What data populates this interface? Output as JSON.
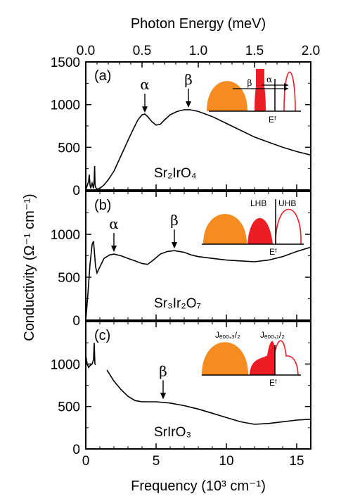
{
  "chart_data": {
    "type": "line",
    "top_axis": {
      "label": "Photon Energy (meV)",
      "ticks": [
        "0.0",
        "0.5",
        "1.0",
        "1.5",
        "2.0"
      ],
      "range": [
        0,
        2.0
      ]
    },
    "x_axis": {
      "label": "Frequency (10³ cm⁻¹)",
      "ticks": [
        "0",
        "5",
        "10",
        "15"
      ],
      "range": [
        0,
        16
      ]
    },
    "y_axis": {
      "label": "Conductivity (Ω⁻¹ cm⁻¹)"
    },
    "panels": [
      {
        "label": "(a)",
        "compound": "Sr₂IrO₄",
        "ylim": [
          0,
          1500
        ],
        "yticks": [
          0,
          500,
          1000,
          1500
        ],
        "peaks": [
          {
            "name": "α",
            "x": 4.2,
            "y": 880
          },
          {
            "name": "β",
            "x": 7.3,
            "y": 940
          }
        ],
        "series": [
          {
            "x": [
              0.0,
              0.2,
              0.25,
              0.3,
              0.35,
              0.45,
              0.55,
              0.6,
              0.63,
              0.66,
              0.7,
              0.8,
              1.0,
              1.3,
              1.6,
              2.0,
              2.5,
              3.0,
              3.4,
              3.7,
              4.0,
              4.2,
              4.4,
              4.7,
              5.0,
              5.3,
              5.6,
              6.0,
              6.5,
              7.0,
              7.4,
              8.0,
              8.5,
              9.0,
              10.0,
              11.0,
              12.0,
              13.0,
              14.0,
              15.0,
              16.0
            ],
            "y": [
              0,
              100,
              180,
              60,
              20,
              80,
              20,
              120,
              280,
              60,
              30,
              10,
              20,
              60,
              120,
              220,
              400,
              580,
              720,
              820,
              880,
              890,
              860,
              800,
              760,
              770,
              820,
              880,
              920,
              940,
              940,
              920,
              890,
              860,
              780,
              700,
              620,
              560,
              500,
              450,
              410
            ]
          }
        ]
      },
      {
        "label": "(b)",
        "compound": "Sr₃Ir₂O₇",
        "ylim": [
          0,
          1500
        ],
        "yticks": [
          0,
          500,
          1000
        ],
        "inset_labels": [
          "LHB",
          "UHB",
          "Eᶠ"
        ],
        "peaks": [
          {
            "name": "α",
            "x": 2.0,
            "y": 770
          },
          {
            "name": "β",
            "x": 6.3,
            "y": 810
          }
        ],
        "series": [
          {
            "x": [
              0.0,
              0.15,
              0.3,
              0.45,
              0.55,
              0.62,
              0.7,
              0.8,
              1.0,
              1.3,
              1.7,
              2.0,
              2.5,
              3.0,
              3.5,
              4.0,
              4.4,
              4.8,
              5.3,
              5.8,
              6.3,
              7.0,
              7.5,
              8.0,
              9.0,
              10.0,
              11.0,
              12.0,
              13.0,
              14.0,
              15.0,
              16.0
            ],
            "y": [
              0,
              300,
              650,
              880,
              920,
              780,
              620,
              550,
              620,
              720,
              760,
              770,
              750,
              720,
              690,
              660,
              650,
              700,
              770,
              800,
              810,
              790,
              760,
              740,
              720,
              700,
              690,
              680,
              700,
              740,
              800,
              850
            ]
          }
        ]
      },
      {
        "label": "(c)",
        "compound": "SrIrO₃",
        "ylim": [
          0,
          1500
        ],
        "yticks": [
          0,
          500,
          1000
        ],
        "inset_labels": [
          "Jₑₒₒ,₃/₂",
          "Jₑₒₒ,₁/₂",
          "Eᶠ"
        ],
        "peaks": [
          {
            "name": "β",
            "x": 5.5,
            "y": 560
          }
        ],
        "series": [
          {
            "x": [
              0.0,
              0.1,
              0.2,
              0.3,
              0.45,
              0.55,
              0.6,
              0.65,
              0.7
            ],
            "y": [
              1100,
              1000,
              960,
              980,
              1000,
              1050,
              1250,
              1000,
              990
            ]
          },
          {
            "x": [
              1.5,
              2.0,
              2.5,
              3.0,
              3.5,
              4.0,
              5.0,
              6.0,
              7.0,
              8.0,
              9.0,
              10.0,
              11.0,
              12.0,
              13.0,
              14.0,
              15.0,
              16.0
            ],
            "y": [
              930,
              800,
              700,
              620,
              570,
              555,
              555,
              540,
              510,
              470,
              420,
              370,
              320,
              290,
              300,
              320,
              340,
              350
            ]
          }
        ]
      }
    ],
    "annotations": [
      "α",
      "β",
      "Eᶠ"
    ],
    "colors": {
      "orange_band": "#f68b20",
      "red_band": "#ee1c25",
      "curve": "#000000"
    }
  }
}
